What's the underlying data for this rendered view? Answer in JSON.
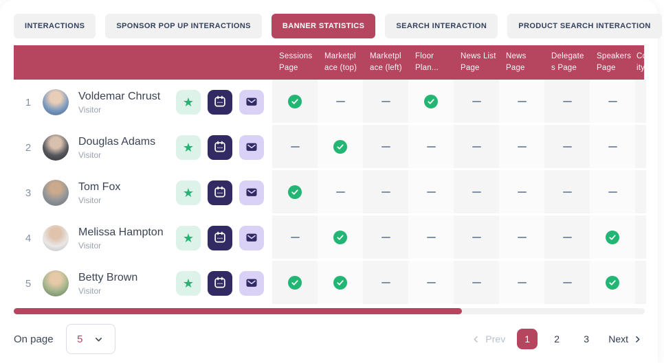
{
  "colors": {
    "accent": "#b6455f",
    "green": "#22b573",
    "mint": "#ddf3ea",
    "navy": "#312a63",
    "lavender": "#d9d2f6"
  },
  "tabs": {
    "items": [
      {
        "label": "INTERACTIONS",
        "active": false
      },
      {
        "label": "SPONSOR POP UP INTERACTIONS",
        "active": false
      },
      {
        "label": "BANNER STATISTICS",
        "active": true
      },
      {
        "label": "SEARCH INTERACTION",
        "active": false
      },
      {
        "label": "PRODUCT SEARCH INTERACTION",
        "active": false
      }
    ]
  },
  "table": {
    "columns": [
      {
        "line1": "Sessions",
        "line2": "Page"
      },
      {
        "line1": "Marketpl",
        "line2": "ace (top)"
      },
      {
        "line1": "Marketpl",
        "line2": "ace (left)"
      },
      {
        "line1": "Floor",
        "line2": "Plan..."
      },
      {
        "line1": "News List",
        "line2": "Page"
      },
      {
        "line1": "News",
        "line2": "Page"
      },
      {
        "line1": "Delegate",
        "line2": "s Page"
      },
      {
        "line1": "Speakers",
        "line2": "Page"
      },
      {
        "line1": "Co",
        "line2": "ity"
      }
    ],
    "rows": [
      {
        "index": "1",
        "name": "Voldemar Chrust",
        "role": "Visitor",
        "cells": [
          "check",
          "dash",
          "dash",
          "check",
          "dash",
          "dash",
          "dash",
          "dash"
        ]
      },
      {
        "index": "2",
        "name": "Douglas Adams",
        "role": "Visitor",
        "cells": [
          "dash",
          "check",
          "dash",
          "dash",
          "dash",
          "dash",
          "dash",
          "dash"
        ]
      },
      {
        "index": "3",
        "name": "Tom Fox",
        "role": "Visitor",
        "cells": [
          "check",
          "dash",
          "dash",
          "dash",
          "dash",
          "dash",
          "dash",
          "dash"
        ]
      },
      {
        "index": "4",
        "name": "Melissa Hampton",
        "role": "Visitor",
        "cells": [
          "dash",
          "check",
          "dash",
          "dash",
          "dash",
          "dash",
          "dash",
          "check"
        ]
      },
      {
        "index": "5",
        "name": "Betty Brown",
        "role": "Visitor",
        "cells": [
          "check",
          "check",
          "dash",
          "dash",
          "dash",
          "dash",
          "dash",
          "check"
        ]
      }
    ]
  },
  "scrollbar": {
    "thumb_width_percent": 71
  },
  "footer": {
    "per_page_label": "On page",
    "per_page_value": "5",
    "pagination": {
      "prev": "Prev",
      "pages": [
        "1",
        "2",
        "3"
      ],
      "active": "1",
      "next": "Next"
    }
  }
}
